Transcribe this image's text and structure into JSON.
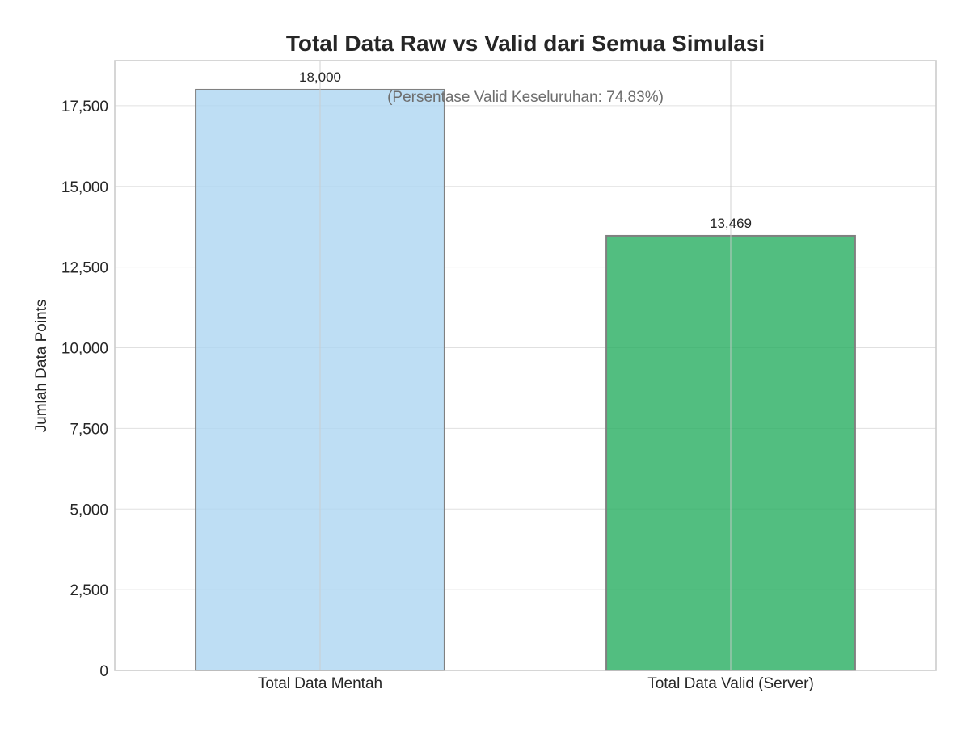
{
  "chart_data": {
    "type": "bar",
    "title": "Total Data Raw vs Valid dari Semua Simulasi",
    "annotation": "(Persentase Valid Keseluruhan: 74.83%)",
    "xlabel": "",
    "ylabel": "Jumlah Data Points",
    "categories": [
      "Total Data Mentah",
      "Total Data Valid (Server)"
    ],
    "values": [
      18000,
      13469
    ],
    "value_labels": [
      "18,000",
      "13,469"
    ],
    "ylim": [
      0,
      18900
    ],
    "yticks": [
      0,
      2500,
      5000,
      7500,
      10000,
      12500,
      15000,
      17500
    ],
    "ytick_labels": [
      "0",
      "2,500",
      "5,000",
      "7,500",
      "10,000",
      "12,500",
      "15,000",
      "17,500"
    ],
    "colors": [
      "#aed6f1",
      "#27ae60"
    ],
    "bar_opacity": [
      0.8,
      0.8
    ],
    "edge_color": "#808080",
    "grid": true,
    "grid_color": "#e0e0e0",
    "frame_color": "#cccccc",
    "text_color": "#262626",
    "annotation_color": "#6e6e6e"
  }
}
